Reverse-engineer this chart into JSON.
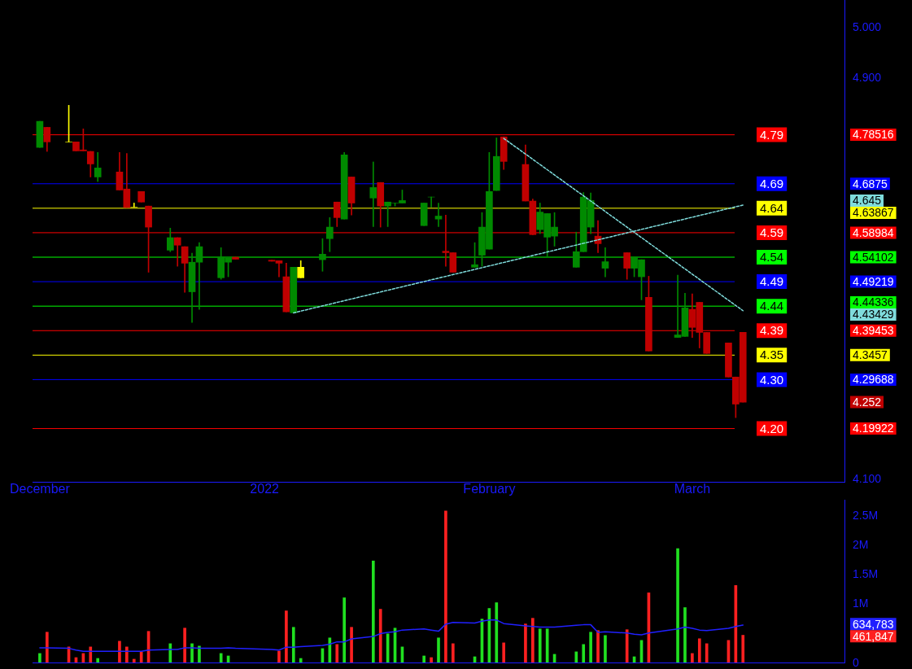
{
  "chart_data": [
    {
      "type": "candlestick",
      "x": [
        "2021-12-01",
        "2021-12-02",
        "2021-12-05",
        "2021-12-06",
        "2021-12-07",
        "2021-12-08",
        "2021-12-09",
        "2021-12-12",
        "2021-12-13",
        "2021-12-14",
        "2021-12-15",
        "2021-12-16",
        "2021-12-19",
        "2021-12-20",
        "2021-12-21",
        "2021-12-22",
        "2021-12-23",
        "2021-12-26",
        "2021-12-27",
        "2021-12-28",
        "2022-01-02",
        "2022-01-03",
        "2022-01-04",
        "2022-01-05",
        "2022-01-06",
        "2022-01-09",
        "2022-01-10",
        "2022-01-11",
        "2022-01-12",
        "2022-01-13",
        "2022-01-16",
        "2022-01-17",
        "2022-01-18",
        "2022-01-19",
        "2022-01-20",
        "2022-01-23",
        "2022-01-24",
        "2022-01-25",
        "2022-01-26",
        "2022-01-27",
        "2022-01-30",
        "2022-01-31",
        "2022-02-01",
        "2022-02-02",
        "2022-02-03",
        "2022-02-06",
        "2022-02-07",
        "2022-02-08",
        "2022-02-09",
        "2022-02-10",
        "2022-02-13",
        "2022-02-14",
        "2022-02-15",
        "2022-02-16",
        "2022-02-17",
        "2022-02-20",
        "2022-02-21",
        "2022-02-22",
        "2022-02-23",
        "2022-02-27",
        "2022-02-28",
        "2022-03-01",
        "2022-03-02",
        "2022-03-03",
        "2022-03-06",
        "2022-03-07",
        "2022-03-08"
      ],
      "ohlc": [
        [
          4.76,
          4.812,
          4.76,
          4.812
        ],
        [
          4.8,
          4.8,
          4.752,
          4.771
        ],
        [
          4.771,
          4.844,
          4.771,
          4.771
        ],
        [
          4.771,
          4.771,
          4.753,
          4.753
        ],
        [
          4.755,
          4.797,
          4.753,
          4.753
        ],
        [
          4.752,
          4.752,
          4.701,
          4.727
        ],
        [
          4.701,
          4.75,
          4.692,
          4.719
        ],
        [
          4.711,
          4.75,
          4.675,
          4.675
        ],
        [
          4.677,
          4.748,
          4.64,
          4.64
        ],
        [
          4.641,
          4.649,
          4.641,
          4.641
        ],
        [
          4.672,
          4.672,
          4.651,
          4.651
        ],
        [
          4.643,
          4.643,
          4.511,
          4.601
        ],
        [
          4.555,
          4.599,
          4.552,
          4.58
        ],
        [
          4.58,
          4.58,
          4.523,
          4.565
        ],
        [
          4.562,
          4.562,
          4.471,
          4.529
        ],
        [
          4.472,
          4.549,
          4.411,
          4.531
        ],
        [
          4.531,
          4.57,
          4.437,
          4.562
        ],
        [
          4.5,
          4.56,
          4.497,
          4.541
        ],
        [
          4.531,
          4.539,
          4.502,
          4.539
        ],
        [
          4.541,
          4.541,
          4.537,
          4.537
        ],
        [
          4.535,
          4.535,
          4.533,
          4.533
        ],
        [
          4.534,
          4.534,
          4.502,
          4.529
        ],
        [
          4.502,
          4.529,
          4.432,
          4.432
        ],
        [
          4.43,
          4.521,
          4.43,
          4.521
        ],
        [
          4.5,
          4.534,
          4.5,
          4.521
        ],
        [
          4.536,
          4.578,
          4.513,
          4.547
        ],
        [
          4.578,
          4.62,
          4.552,
          4.601
        ],
        [
          4.651,
          4.651,
          4.602,
          4.62
        ],
        [
          4.617,
          4.75,
          4.617,
          4.745
        ],
        [
          4.701,
          4.701,
          4.625,
          4.649
        ],
        [
          4.659,
          4.731,
          4.602,
          4.68
        ],
        [
          4.69,
          4.69,
          4.601,
          4.643
        ],
        [
          4.643,
          4.651,
          4.602,
          4.651
        ],
        [
          4.649,
          4.649,
          4.643,
          4.649
        ],
        [
          4.649,
          4.675,
          4.649,
          4.654
        ],
        [
          4.604,
          4.649,
          4.604,
          4.649
        ],
        [
          4.661,
          4.661,
          4.641,
          4.661
        ],
        [
          4.617,
          4.649,
          4.602,
          4.623
        ],
        [
          4.553,
          4.625,
          4.523,
          4.55
        ],
        [
          4.55,
          4.55,
          4.511,
          4.511
        ],
        [
          4.521,
          4.57,
          4.521,
          4.526
        ],
        [
          4.545,
          4.63,
          4.523,
          4.601
        ],
        [
          4.557,
          4.75,
          4.557,
          4.672
        ],
        [
          4.674,
          4.779,
          4.674,
          4.742
        ],
        [
          4.781,
          4.781,
          4.716,
          4.732
        ],
        [
          4.726,
          4.765,
          4.653,
          4.653
        ],
        [
          4.653,
          4.657,
          4.586,
          4.586
        ],
        [
          4.596,
          4.649,
          4.588,
          4.631
        ],
        [
          4.581,
          4.628,
          4.542,
          4.628
        ],
        [
          4.583,
          4.63,
          4.563,
          4.601
        ],
        [
          4.521,
          4.591,
          4.521,
          4.552
        ],
        [
          4.552,
          4.67,
          4.552,
          4.661
        ],
        [
          4.601,
          4.669,
          4.588,
          4.654
        ],
        [
          4.583,
          4.614,
          4.55,
          4.568
        ],
        [
          4.519,
          4.56,
          4.502,
          4.532
        ],
        [
          4.55,
          4.55,
          4.497,
          4.519
        ],
        [
          4.519,
          4.541,
          4.502,
          4.541
        ],
        [
          4.502,
          4.536,
          4.456,
          4.536
        ],
        [
          4.461,
          4.503,
          4.354,
          4.354
        ],
        [
          4.381,
          4.505,
          4.381,
          4.386
        ],
        [
          4.383,
          4.469,
          4.383,
          4.44
        ],
        [
          4.437,
          4.468,
          4.381,
          4.401
        ],
        [
          4.451,
          4.451,
          4.36,
          4.391
        ],
        [
          4.391,
          4.391,
          4.349,
          4.349
        ],
        [
          4.37,
          4.37,
          4.302,
          4.302
        ],
        [
          4.302,
          4.302,
          4.221,
          4.248
        ],
        [
          4.391,
          4.391,
          4.252,
          4.252
        ]
      ],
      "colors": [
        "#008a00",
        "#c00000",
        "#ffff00",
        "#c00000",
        "#c00000",
        "#c00000",
        "#008a00",
        "#c00000",
        "#c00000",
        "#ffff00",
        "#c00000",
        "#c00000",
        "#008a00",
        "#c00000",
        "#c00000",
        "#008a00",
        "#008a00",
        "#008a00",
        "#008a00",
        "#c00000",
        "#c00000",
        "#c00000",
        "#c00000",
        "#008a00",
        "#ffff00",
        "#008a00",
        "#008a00",
        "#c00000",
        "#008a00",
        "#c00000",
        "#008a00",
        "#c00000",
        "#008a00",
        "#008a00",
        "#008a00",
        "#008a00",
        "#008a00",
        "#008a00",
        "#c00000",
        "#c00000",
        "#008a00",
        "#008a00",
        "#008a00",
        "#008a00",
        "#c00000",
        "#c00000",
        "#c00000",
        "#008a00",
        "#008a00",
        "#008a00",
        "#008a00",
        "#008a00",
        "#008a00",
        "#c00000",
        "#008a00",
        "#c00000",
        "#008a00",
        "#008a00",
        "#c00000",
        "#008a00",
        "#008a00",
        "#c00000",
        "#c00000",
        "#c00000",
        "#c00000",
        "#c00000",
        "#c00000"
      ],
      "series": [
        {
          "type": "line",
          "color": "#7fdcdc",
          "line_style": "dotted",
          "x": [
            "2022-01-05",
            "2022-03-08"
          ],
          "values": [
            4.43,
            4.645
          ]
        },
        {
          "type": "line",
          "color": "#7fdcdc",
          "line_style": "dotted",
          "x": [
            "2022-02-03",
            "2022-03-08"
          ],
          "values": [
            4.778,
            4.43429
          ]
        }
      ],
      "xlim": [
        "2021-11-30",
        "2022-03-22"
      ],
      "xticks": [
        {
          "value": "2021-12-01",
          "label": "December"
        },
        {
          "value": "2022-01-01",
          "label": "2022"
        },
        {
          "value": "2022-02-01",
          "label": "February"
        },
        {
          "value": "2022-03-01",
          "label": "March"
        }
      ],
      "ylim": [
        4.093,
        5.054
      ],
      "yticks": [
        {
          "value": 4.1,
          "label": "4.100"
        },
        {
          "value": 4.19922,
          "label": "4.19922"
        },
        {
          "value": 4.252,
          "label": "4.252"
        },
        {
          "value": 4.29688,
          "label": "4.29688"
        },
        {
          "value": 4.3457,
          "label": "4.3457"
        },
        {
          "value": 4.39453,
          "label": "4.39453"
        },
        {
          "value": 4.43429,
          "label": "4.43429"
        },
        {
          "value": 4.44336,
          "label": "4.44336"
        },
        {
          "value": 4.49219,
          "label": "4.49219"
        },
        {
          "value": 4.54102,
          "label": "4.54102"
        },
        {
          "value": 4.58984,
          "label": "4.58984"
        },
        {
          "value": 4.63867,
          "label": "4.63867"
        },
        {
          "value": 4.645,
          "label": "4.645"
        },
        {
          "value": 4.6875,
          "label": "4.6875"
        },
        {
          "value": 4.78516,
          "label": "4.78516"
        },
        {
          "value": 4.9,
          "label": "4.900"
        },
        {
          "value": 5.0,
          "label": "5.000"
        }
      ],
      "ref_lines": [
        {
          "axis": "y",
          "value": 4.78516,
          "label": "4.79",
          "color": "#ff0000"
        },
        {
          "axis": "y",
          "value": 4.6875,
          "label": "4.69",
          "color": "#0000ff"
        },
        {
          "axis": "y",
          "value": 4.63867,
          "label": "4.64",
          "color": "#ffff00"
        },
        {
          "axis": "y",
          "value": 4.58984,
          "label": "4.59",
          "color": "#ff0000"
        },
        {
          "axis": "y",
          "value": 4.54102,
          "label": "4.54",
          "color": "#00ff00"
        },
        {
          "axis": "y",
          "value": 4.49219,
          "label": "4.49",
          "color": "#0000ff"
        },
        {
          "axis": "y",
          "value": 4.44336,
          "label": "4.44",
          "color": "#00ff00"
        },
        {
          "axis": "y",
          "value": 4.39453,
          "label": "4.39",
          "color": "#ff0000"
        },
        {
          "axis": "y",
          "value": 4.3457,
          "label": "4.35",
          "color": "#ffff00"
        },
        {
          "axis": "y",
          "value": 4.29688,
          "label": "4.30",
          "color": "#0000ff"
        },
        {
          "axis": "y",
          "value": 4.19922,
          "label": "4.20",
          "color": "#ff0000"
        }
      ]
    },
    {
      "type": "bar",
      "x": [
        "2021-12-01",
        "2021-12-02",
        "2021-12-05",
        "2021-12-06",
        "2021-12-07",
        "2021-12-08",
        "2021-12-09",
        "2021-12-12",
        "2021-12-13",
        "2021-12-14",
        "2021-12-15",
        "2021-12-16",
        "2021-12-19",
        "2021-12-20",
        "2021-12-21",
        "2021-12-22",
        "2021-12-23",
        "2021-12-26",
        "2021-12-27",
        "2021-12-28",
        "2022-01-02",
        "2022-01-03",
        "2022-01-04",
        "2022-01-05",
        "2022-01-06",
        "2022-01-09",
        "2022-01-10",
        "2022-01-11",
        "2022-01-12",
        "2022-01-13",
        "2022-01-16",
        "2022-01-17",
        "2022-01-18",
        "2022-01-19",
        "2022-01-20",
        "2022-01-23",
        "2022-01-24",
        "2022-01-25",
        "2022-01-26",
        "2022-01-27",
        "2022-01-30",
        "2022-01-31",
        "2022-02-01",
        "2022-02-02",
        "2022-02-03",
        "2022-02-06",
        "2022-02-07",
        "2022-02-08",
        "2022-02-09",
        "2022-02-10",
        "2022-02-13",
        "2022-02-14",
        "2022-02-15",
        "2022-02-16",
        "2022-02-17",
        "2022-02-20",
        "2022-02-21",
        "2022-02-22",
        "2022-02-23",
        "2022-02-27",
        "2022-02-28",
        "2022-03-01",
        "2022-03-02",
        "2022-03-03",
        "2022-03-06",
        "2022-03-07",
        "2022-03-08"
      ],
      "series": [
        {
          "type": "bar",
          "values": [
            153000,
            514000,
            264000,
            83000,
            153000,
            264000,
            69000,
            361000,
            264000,
            56000,
            181000,
            528000,
            319000,
            null,
            583000,
            319000,
            278000,
            153000,
            111000,
            null,
            null,
            194000,
            875000,
            597000,
            69000,
            236000,
            417000,
            306000,
            1097000,
            597000,
            1722000,
            903000,
            486000,
            583000,
            264000,
            111000,
            83000,
            417000,
            2569000,
            319000,
            97000,
            736000,
            917000,
            1014000,
            333000,
            653000,
            750000,
            569000,
            569000,
            139000,
            181000,
            306000,
            514000,
            542000,
            458000,
            556000,
            97000,
            375000,
            1181000,
            1931000,
            931000,
            153000,
            403000,
            319000,
            375000,
            1306000,
            461847
          ],
          "colors": [
            "#20e020",
            "#ff2020",
            "#ff2020",
            "#ff2020",
            "#ff2020",
            "#ff2020",
            "#20e020",
            "#ff2020",
            "#ff2020",
            "#ff2020",
            "#ff2020",
            "#ff2020",
            "#20e020",
            "#ff2020",
            "#ff2020",
            "#20e020",
            "#20e020",
            "#20e020",
            "#20e020",
            "#ff2020",
            "#ff2020",
            "#ff2020",
            "#ff2020",
            "#20e020",
            "#20e020",
            "#20e020",
            "#20e020",
            "#ff2020",
            "#20e020",
            "#ff2020",
            "#20e020",
            "#ff2020",
            "#20e020",
            "#20e020",
            "#20e020",
            "#20e020",
            "#ff2020",
            "#20e020",
            "#ff2020",
            "#ff2020",
            "#20e020",
            "#20e020",
            "#20e020",
            "#20e020",
            "#ff2020",
            "#ff2020",
            "#ff2020",
            "#20e020",
            "#20e020",
            "#20e020",
            "#20e020",
            "#20e020",
            "#20e020",
            "#ff2020",
            "#20e020",
            "#ff2020",
            "#20e020",
            "#20e020",
            "#ff2020",
            "#20e020",
            "#20e020",
            "#ff2020",
            "#ff2020",
            "#ff2020",
            "#ff2020",
            "#ff2020",
            "#ff2020"
          ]
        },
        {
          "type": "line",
          "color": "#2020ff",
          "values": [
            250000,
            250000,
            240000,
            210000,
            190000,
            190000,
            190000,
            190000,
            190000,
            190000,
            190000,
            210000,
            220000,
            220000,
            250000,
            250000,
            240000,
            240000,
            250000,
            240000,
            220000,
            210000,
            260000,
            260000,
            270000,
            290000,
            310000,
            350000,
            350000,
            400000,
            440000,
            490000,
            510000,
            520000,
            550000,
            570000,
            550000,
            530000,
            650000,
            680000,
            670000,
            700000,
            720000,
            720000,
            660000,
            620000,
            610000,
            600000,
            600000,
            600000,
            630000,
            640000,
            640000,
            510000,
            520000,
            500000,
            480000,
            470000,
            500000,
            570000,
            600000,
            580000,
            550000,
            540000,
            580000,
            610000,
            634783
          ]
        }
      ],
      "xlim": [
        "2021-11-30",
        "2022-03-22"
      ],
      "ylim": [
        0,
        2760000
      ],
      "yticks": [
        {
          "value": 0,
          "label": "0"
        },
        {
          "value": 461847,
          "label": "461,847"
        },
        {
          "value": 634783,
          "label": "634,783"
        },
        {
          "value": 1000000,
          "label": "1M"
        },
        {
          "value": 1500000,
          "label": "1.5M"
        },
        {
          "value": 2000000,
          "label": "2M"
        },
        {
          "value": 2500000,
          "label": "2.5M"
        }
      ],
      "tick_labels": "y"
    }
  ]
}
